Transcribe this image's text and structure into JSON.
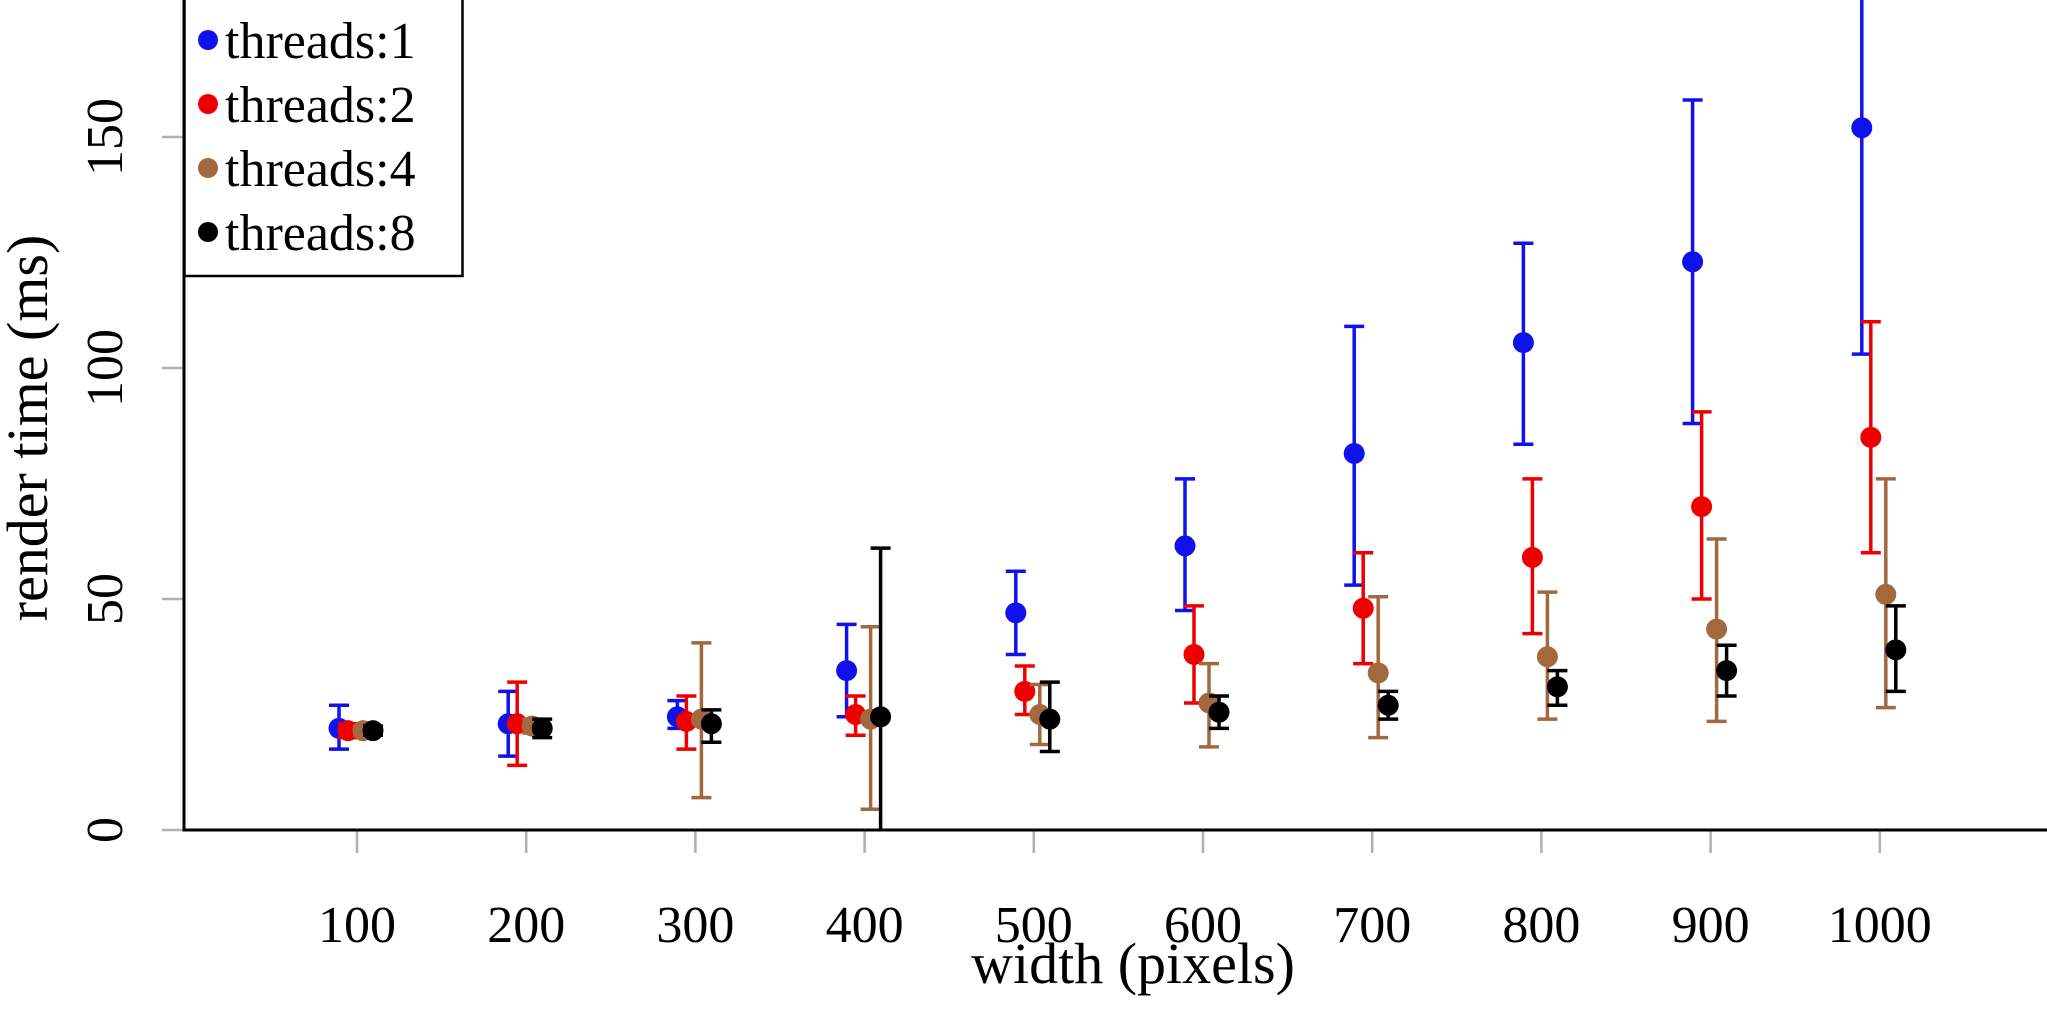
{
  "figure": {
    "xlabel": "width (pixels)",
    "ylabel": "render time (ms)",
    "legend": [
      {
        "label": "threads:1",
        "color": "#1012ec"
      },
      {
        "label": "threads:2",
        "color": "#ee0000"
      },
      {
        "label": "threads:4",
        "color": "#a2693f"
      },
      {
        "label": "threads:8",
        "color": "#000000"
      }
    ]
  },
  "chart_data": {
    "type": "scatter",
    "title": "",
    "xlabel": "width (pixels)",
    "ylabel": "render time (ms)",
    "grid": false,
    "error_bars": true,
    "legend_position": "top-left",
    "xlim": [
      0,
      1100
    ],
    "ylim": [
      0,
      180
    ],
    "xticks": [
      100,
      200,
      300,
      400,
      500,
      600,
      700,
      800,
      900,
      1000
    ],
    "yticks": [
      0,
      50,
      100,
      150
    ],
    "series": [
      {
        "name": "threads:1",
        "color": "#1012ec",
        "points_format": "[width, render_time_ms, err_low, err_high]",
        "points": [
          [
            100,
            22,
            17.5,
            27
          ],
          [
            200,
            23,
            16,
            30
          ],
          [
            300,
            24.5,
            22,
            28
          ],
          [
            400,
            34.5,
            24.5,
            44.5
          ],
          [
            500,
            47,
            38,
            56
          ],
          [
            600,
            61.5,
            47.5,
            76
          ],
          [
            700,
            81.5,
            53,
            109
          ],
          [
            800,
            105.5,
            83.5,
            127
          ],
          [
            900,
            123,
            88,
            158
          ],
          [
            1000,
            152,
            103,
            186
          ]
        ]
      },
      {
        "name": "threads:2",
        "color": "#ee0000",
        "points_format": "[width, render_time_ms, err_low, err_high]",
        "points": [
          [
            100,
            21.5,
            20,
            23
          ],
          [
            200,
            23,
            14,
            32
          ],
          [
            300,
            23.5,
            17.5,
            29
          ],
          [
            400,
            25,
            20.5,
            29
          ],
          [
            500,
            30,
            25,
            35.5
          ],
          [
            600,
            38,
            27.5,
            48.5
          ],
          [
            700,
            48,
            36,
            60
          ],
          [
            800,
            59,
            42.5,
            76
          ],
          [
            900,
            70,
            50,
            90.5
          ],
          [
            1000,
            85,
            60,
            110
          ]
        ]
      },
      {
        "name": "threads:4",
        "color": "#a2693f",
        "points_format": "[width, render_time_ms, err_low, err_high]",
        "points": [
          [
            100,
            21.5,
            20.5,
            22.5
          ],
          [
            200,
            22.5,
            21,
            24
          ],
          [
            300,
            24,
            7,
            40.5
          ],
          [
            400,
            24,
            4.5,
            44
          ],
          [
            500,
            25,
            18.5,
            31.5
          ],
          [
            600,
            27.5,
            18,
            36
          ],
          [
            700,
            34,
            20,
            50.5
          ],
          [
            800,
            37.5,
            24,
            51.5
          ],
          [
            900,
            43.5,
            23.5,
            63
          ],
          [
            1000,
            51,
            26.5,
            76
          ]
        ]
      },
      {
        "name": "threads:8",
        "color": "#000000",
        "points_format": "[width, render_time_ms, err_low, err_high]",
        "points": [
          [
            100,
            21.5,
            20.5,
            22.5
          ],
          [
            200,
            22,
            20,
            24
          ],
          [
            300,
            23,
            19,
            26
          ],
          [
            400,
            24.5,
            0,
            61
          ],
          [
            500,
            24,
            17,
            32
          ],
          [
            600,
            25.5,
            22,
            29
          ],
          [
            700,
            27,
            24,
            30
          ],
          [
            800,
            31,
            27,
            34.5
          ],
          [
            900,
            34.5,
            29,
            40
          ],
          [
            1000,
            39,
            30,
            48.5
          ]
        ]
      }
    ]
  }
}
